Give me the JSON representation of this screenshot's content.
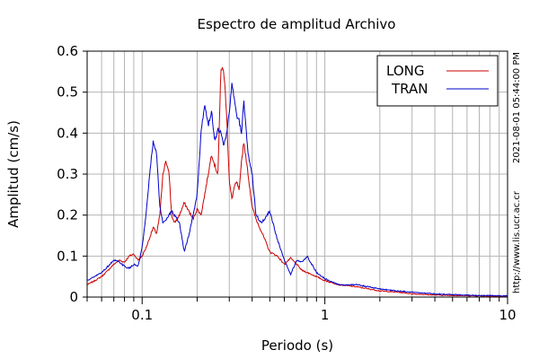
{
  "chart_data": {
    "type": "line",
    "title": "Espectro de amplitud Archivo",
    "xlabel": "Periodo (s)",
    "ylabel": "Amplitud (cm/s)",
    "xscale": "log",
    "xlim": [
      0.05,
      10
    ],
    "ylim": [
      0,
      0.6
    ],
    "grid": true,
    "legend_position": "top-right",
    "x_ticks": [
      0.1,
      1,
      10
    ],
    "x_tick_labels": [
      "0.1",
      "1",
      "10"
    ],
    "y_ticks": [
      0,
      0.1,
      0.2,
      0.3,
      0.4,
      0.5,
      0.6
    ],
    "y_tick_labels": [
      "0",
      "0.1",
      "0.2",
      "0.3",
      "0.4",
      "0.5",
      "0.6"
    ],
    "series": [
      {
        "name": "LONG",
        "color": "#cc0000",
        "x": [
          0.05,
          0.055,
          0.06,
          0.065,
          0.07,
          0.075,
          0.08,
          0.085,
          0.09,
          0.095,
          0.1,
          0.105,
          0.11,
          0.115,
          0.12,
          0.125,
          0.13,
          0.135,
          0.14,
          0.145,
          0.15,
          0.16,
          0.17,
          0.18,
          0.19,
          0.2,
          0.21,
          0.22,
          0.23,
          0.24,
          0.25,
          0.26,
          0.27,
          0.28,
          0.29,
          0.3,
          0.31,
          0.32,
          0.33,
          0.34,
          0.35,
          0.36,
          0.38,
          0.4,
          0.42,
          0.45,
          0.5,
          0.55,
          0.6,
          0.65,
          0.7,
          0.75,
          0.8,
          0.9,
          1.0,
          1.2,
          1.5,
          2.0,
          2.5,
          3.0,
          4.0,
          5.0,
          7.0,
          10.0
        ],
        "y": [
          0.03,
          0.04,
          0.05,
          0.065,
          0.08,
          0.09,
          0.085,
          0.1,
          0.105,
          0.09,
          0.1,
          0.12,
          0.145,
          0.17,
          0.155,
          0.2,
          0.3,
          0.33,
          0.31,
          0.2,
          0.18,
          0.2,
          0.23,
          0.21,
          0.19,
          0.215,
          0.2,
          0.25,
          0.3,
          0.35,
          0.32,
          0.3,
          0.56,
          0.55,
          0.45,
          0.28,
          0.24,
          0.27,
          0.28,
          0.26,
          0.33,
          0.38,
          0.3,
          0.22,
          0.19,
          0.16,
          0.11,
          0.1,
          0.08,
          0.095,
          0.08,
          0.065,
          0.06,
          0.05,
          0.04,
          0.03,
          0.025,
          0.015,
          0.012,
          0.008,
          0.005,
          0.004,
          0.003,
          0.002
        ]
      },
      {
        "name": "TRAN",
        "color": "#0000cc",
        "x": [
          0.05,
          0.055,
          0.06,
          0.065,
          0.07,
          0.075,
          0.08,
          0.085,
          0.09,
          0.095,
          0.1,
          0.105,
          0.11,
          0.115,
          0.12,
          0.125,
          0.13,
          0.135,
          0.14,
          0.145,
          0.15,
          0.16,
          0.17,
          0.18,
          0.19,
          0.2,
          0.21,
          0.22,
          0.23,
          0.24,
          0.25,
          0.26,
          0.27,
          0.28,
          0.29,
          0.3,
          0.31,
          0.32,
          0.33,
          0.34,
          0.35,
          0.36,
          0.38,
          0.4,
          0.42,
          0.45,
          0.5,
          0.55,
          0.6,
          0.65,
          0.7,
          0.75,
          0.8,
          0.9,
          1.0,
          1.2,
          1.5,
          2.0,
          2.5,
          3.0,
          4.0,
          5.0,
          7.0,
          10.0
        ],
        "y": [
          0.04,
          0.05,
          0.06,
          0.075,
          0.09,
          0.085,
          0.075,
          0.07,
          0.08,
          0.075,
          0.12,
          0.2,
          0.3,
          0.38,
          0.35,
          0.22,
          0.18,
          0.19,
          0.2,
          0.21,
          0.2,
          0.18,
          0.11,
          0.15,
          0.2,
          0.25,
          0.4,
          0.47,
          0.42,
          0.45,
          0.38,
          0.41,
          0.4,
          0.37,
          0.4,
          0.45,
          0.52,
          0.48,
          0.44,
          0.43,
          0.4,
          0.48,
          0.35,
          0.3,
          0.2,
          0.18,
          0.21,
          0.14,
          0.09,
          0.055,
          0.09,
          0.085,
          0.1,
          0.06,
          0.045,
          0.03,
          0.03,
          0.02,
          0.015,
          0.012,
          0.008,
          0.006,
          0.004,
          0.003
        ]
      }
    ],
    "side_labels": [
      "2021-08-01 05:44:00 PM",
      "http://www.lis.ucr.ac.cr"
    ]
  }
}
